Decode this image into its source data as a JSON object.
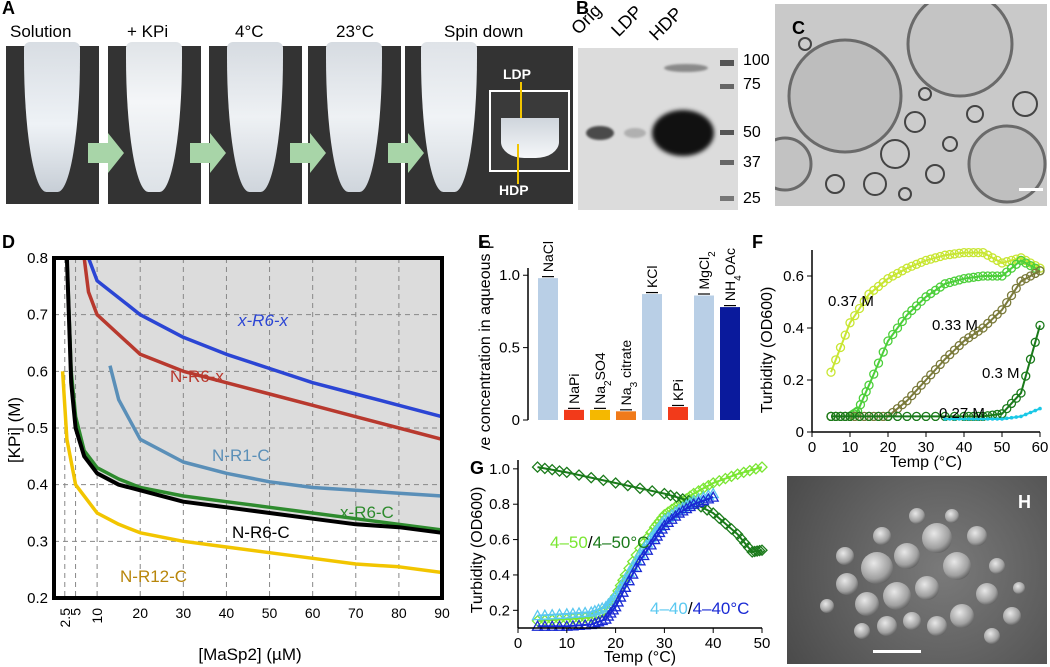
{
  "panels": {
    "A": {
      "label": "A",
      "steps": [
        "Solution",
        "+ KPi",
        "4°C",
        "23°C",
        "Spin down"
      ],
      "inset": {
        "top": "LDP",
        "bottom": "HDP"
      }
    },
    "B": {
      "label": "B",
      "lanes": [
        "Orig",
        "LDP",
        "HDP"
      ],
      "markers": [
        "100",
        "75",
        "50",
        "37",
        "25"
      ]
    },
    "C": {
      "label": "C"
    },
    "D": {
      "label": "D",
      "xlabel": "[MaSp2] (µM)",
      "ylabel": "[KPi] (M)",
      "xticks": [
        "2.5",
        "5",
        "10",
        "20",
        "30",
        "40",
        "50",
        "60",
        "70",
        "80",
        "90"
      ],
      "yticks": [
        "0.8",
        "0.7",
        "0.6",
        "0.5",
        "0.4",
        "0.3",
        "0.2"
      ],
      "curve_labels": [
        {
          "text": "x-R6-x",
          "color": "#2b45d4"
        },
        {
          "text": "N-R6-x",
          "color": "#b8392e"
        },
        {
          "text": "N-R1-C",
          "color": "#5a8fb8"
        },
        {
          "text": "x-R6-C",
          "color": "#2e8b2e"
        },
        {
          "text": "N-R6-C",
          "color": "#000000"
        },
        {
          "text": "N-R12-C",
          "color": "#b8860b"
        }
      ]
    },
    "E": {
      "label": "E",
      "ylabel": "Relative concentration in aqueous phase",
      "yticks": [
        "1.0",
        "0.5",
        "0"
      ]
    },
    "F": {
      "label": "F",
      "xlabel": "Temp (°C)",
      "ylabel": "Turbidity (OD600)",
      "xticks": [
        "0",
        "10",
        "20",
        "30",
        "40",
        "50",
        "60"
      ],
      "yticks": [
        "0.6",
        "0.4",
        "0.2",
        "0"
      ],
      "curve_labels": [
        "0.37 M",
        "0.33 M",
        "0.3 M",
        "0.27 M"
      ]
    },
    "G": {
      "label": "G",
      "xlabel": "Temp (°C)",
      "ylabel": "Turbidity (OD600)",
      "xticks": [
        "0",
        "10",
        "20",
        "30",
        "40",
        "50"
      ],
      "yticks": [
        "1.0",
        "0.8",
        "0.6",
        "0.4",
        "0.2"
      ],
      "legend1": {
        "a": "4–50",
        "sep": "/",
        "b": "4–50°C"
      },
      "legend2": {
        "a": "4–40",
        "sep": "/",
        "b": "4–40°C"
      }
    },
    "H": {
      "label": "H"
    }
  },
  "chart_data": [
    {
      "type": "line",
      "panel": "D",
      "xlabel": "[MaSp2] (µM)",
      "ylabel": "[KPi] (M)",
      "xlim": [
        0,
        90
      ],
      "ylim": [
        0.2,
        0.8
      ],
      "grid": true,
      "series": [
        {
          "name": "x-R6-x",
          "color": "#2b45d4",
          "x": [
            8,
            10,
            20,
            30,
            40,
            50,
            60,
            70,
            80,
            90
          ],
          "y": [
            0.8,
            0.76,
            0.7,
            0.66,
            0.63,
            0.605,
            0.58,
            0.56,
            0.54,
            0.52
          ]
        },
        {
          "name": "N-R6-x",
          "color": "#b8392e",
          "x": [
            7,
            8,
            10,
            20,
            30,
            40,
            50,
            60,
            70,
            80,
            90
          ],
          "y": [
            0.8,
            0.74,
            0.7,
            0.63,
            0.6,
            0.58,
            0.56,
            0.54,
            0.52,
            0.5,
            0.48
          ]
        },
        {
          "name": "N-R1-C",
          "color": "#5a8fb8",
          "x": [
            13,
            15,
            20,
            30,
            40,
            50,
            60,
            70,
            80,
            90
          ],
          "y": [
            0.61,
            0.55,
            0.48,
            0.44,
            0.42,
            0.405,
            0.395,
            0.39,
            0.385,
            0.38
          ]
        },
        {
          "name": "x-R6-C",
          "color": "#2e8b2e",
          "x": [
            3,
            4,
            5,
            7,
            10,
            15,
            20,
            30,
            40,
            50,
            60,
            70,
            80,
            90
          ],
          "y": [
            0.8,
            0.6,
            0.52,
            0.46,
            0.43,
            0.41,
            0.395,
            0.38,
            0.37,
            0.36,
            0.35,
            0.34,
            0.33,
            0.32
          ]
        },
        {
          "name": "N-R6-C",
          "color": "#000000",
          "x": [
            3,
            4,
            5,
            7,
            10,
            15,
            20,
            30,
            40,
            50,
            60,
            70,
            80,
            90
          ],
          "y": [
            0.8,
            0.58,
            0.5,
            0.45,
            0.42,
            0.4,
            0.39,
            0.37,
            0.36,
            0.35,
            0.34,
            0.33,
            0.325,
            0.315
          ]
        },
        {
          "name": "N-R12-C",
          "color": "#f2c500",
          "x": [
            2,
            3,
            5,
            10,
            15,
            20,
            30,
            40,
            50,
            60,
            70,
            80,
            90
          ],
          "y": [
            0.6,
            0.48,
            0.4,
            0.35,
            0.33,
            0.315,
            0.3,
            0.29,
            0.28,
            0.27,
            0.26,
            0.255,
            0.245
          ]
        }
      ]
    },
    {
      "type": "bar",
      "panel": "E",
      "ylabel": "Relative concentration in aqueous phase",
      "ylim": [
        0,
        1.05
      ],
      "categories": [
        "NaCl",
        "NaPi",
        "Na2SO4",
        "Na3 citrate",
        "KCl",
        "KPi",
        "MgCl2",
        "NH4OAc"
      ],
      "values": [
        0.98,
        0.07,
        0.07,
        0.06,
        0.87,
        0.09,
        0.86,
        0.78
      ],
      "colors": [
        "#b9cfe6",
        "#f23a1a",
        "#f5b800",
        "#f07a1a",
        "#b9cfe6",
        "#f23a1a",
        "#b9cfe6",
        "#0a1a9c"
      ]
    },
    {
      "type": "scatter",
      "panel": "F",
      "xlabel": "Temp (°C)",
      "ylabel": "Turbidity (OD600)",
      "xlim": [
        0,
        60
      ],
      "ylim": [
        0,
        0.7
      ],
      "series": [
        {
          "name": "0.37 M",
          "color": "#c8e632",
          "x": [
            5,
            10,
            15,
            20,
            25,
            30,
            35,
            40,
            45,
            50,
            55,
            60
          ],
          "y": [
            0.23,
            0.42,
            0.53,
            0.59,
            0.63,
            0.66,
            0.68,
            0.69,
            0.69,
            0.65,
            0.67,
            0.63
          ]
        },
        {
          "name": "0.33 M",
          "color": "#4ccf3a",
          "x": [
            5,
            10,
            12,
            15,
            20,
            25,
            30,
            35,
            40,
            45,
            50,
            55,
            60
          ],
          "y": [
            0.06,
            0.06,
            0.08,
            0.18,
            0.35,
            0.45,
            0.52,
            0.57,
            0.59,
            0.6,
            0.6,
            0.66,
            0.62
          ]
        },
        {
          "name": "0.3 M",
          "color": "#7a7a3a",
          "x": [
            5,
            10,
            15,
            20,
            25,
            30,
            35,
            40,
            45,
            50,
            55,
            60
          ],
          "y": [
            0.06,
            0.06,
            0.06,
            0.06,
            0.12,
            0.2,
            0.28,
            0.35,
            0.4,
            0.47,
            0.58,
            0.62
          ]
        },
        {
          "name": "0.27 M",
          "color": "#1a7a1a",
          "x": [
            5,
            10,
            20,
            30,
            40,
            45,
            50,
            55,
            60
          ],
          "y": [
            0.06,
            0.06,
            0.06,
            0.06,
            0.06,
            0.06,
            0.07,
            0.15,
            0.41
          ]
        },
        {
          "name": "",
          "color": "#1ac8e6",
          "x": [
            35,
            40,
            45,
            50,
            55,
            60
          ],
          "y": [
            0.05,
            0.05,
            0.05,
            0.05,
            0.06,
            0.09
          ]
        }
      ]
    },
    {
      "type": "scatter",
      "panel": "G",
      "xlabel": "Temp (°C)",
      "ylabel": "Turbidity (OD600)",
      "xlim": [
        0,
        50
      ],
      "ylim": [
        0.1,
        1.05
      ],
      "series": [
        {
          "name": "4–50",
          "color": "#7ae632",
          "x": [
            4,
            10,
            15,
            18,
            20,
            22,
            25,
            28,
            30,
            33,
            36,
            40,
            45,
            50
          ],
          "y": [
            0.14,
            0.15,
            0.16,
            0.2,
            0.28,
            0.4,
            0.55,
            0.67,
            0.74,
            0.8,
            0.86,
            0.92,
            0.97,
            1.01
          ]
        },
        {
          "name": "4–50°C",
          "color": "#1a7a1a",
          "x": [
            4,
            10,
            20,
            30,
            35,
            40,
            45,
            48,
            50
          ],
          "y": [
            1.01,
            0.98,
            0.92,
            0.86,
            0.82,
            0.75,
            0.63,
            0.53,
            0.54
          ]
        },
        {
          "name": "4–40",
          "color": "#5ac8f0",
          "x": [
            4,
            10,
            15,
            18,
            20,
            22,
            25,
            28,
            30,
            33,
            36,
            40
          ],
          "y": [
            0.17,
            0.18,
            0.19,
            0.22,
            0.28,
            0.38,
            0.52,
            0.64,
            0.71,
            0.77,
            0.82,
            0.86
          ]
        },
        {
          "name": "4–40°C",
          "color": "#1a2ad4",
          "x": [
            4,
            10,
            15,
            18,
            20,
            22,
            25,
            28,
            30,
            33,
            36,
            40
          ],
          "y": [
            0.11,
            0.11,
            0.12,
            0.15,
            0.22,
            0.33,
            0.48,
            0.6,
            0.68,
            0.75,
            0.8,
            0.84
          ]
        }
      ]
    }
  ]
}
